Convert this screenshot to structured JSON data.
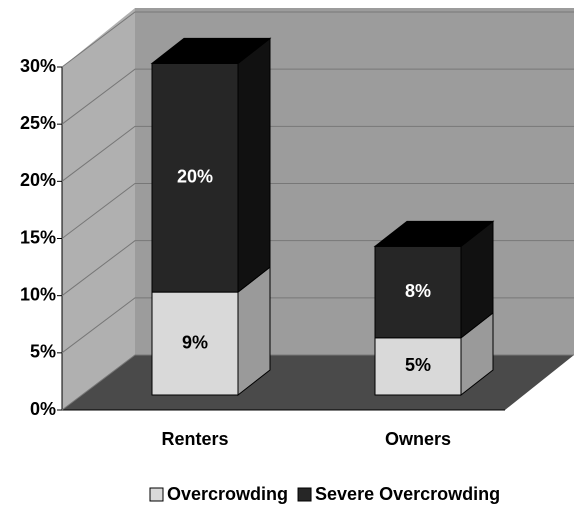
{
  "chart_data": {
    "type": "bar",
    "stacked": true,
    "categories": [
      "Renters",
      "Owners"
    ],
    "series": [
      {
        "name": "Overcrowding",
        "color": "#d9d9d9",
        "values": [
          9,
          5
        ],
        "value_labels": [
          "9%",
          "5%"
        ]
      },
      {
        "name": "Severe Overcrowding",
        "color": "#262626",
        "values": [
          20,
          8
        ],
        "value_labels": [
          "20%",
          "8%"
        ]
      }
    ],
    "ylim": [
      0,
      30
    ],
    "yticks": [
      {
        "value": 0,
        "label": "0%"
      },
      {
        "value": 5,
        "label": "5%"
      },
      {
        "value": 10,
        "label": "10%"
      },
      {
        "value": 15,
        "label": "15%"
      },
      {
        "value": 20,
        "label": "20%"
      },
      {
        "value": 25,
        "label": "25%"
      },
      {
        "value": 30,
        "label": "30%"
      }
    ],
    "grid": true,
    "legend": "bottom"
  }
}
